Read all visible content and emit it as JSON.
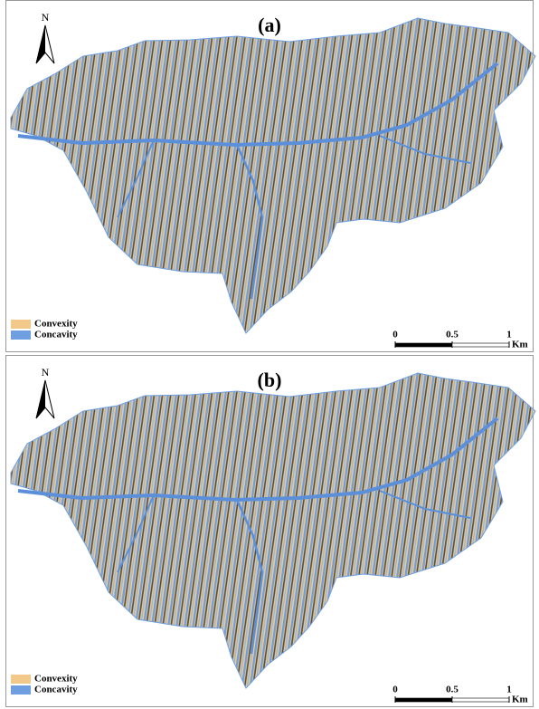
{
  "panels": [
    {
      "label": "(a)",
      "north": "N",
      "legend": [
        {
          "name": "Convexity",
          "color": "#f2c98a"
        },
        {
          "name": "Concavity",
          "color": "#6f9fe0"
        }
      ],
      "scale": {
        "ticks": [
          0,
          0.5,
          1
        ],
        "unit": "Km"
      }
    },
    {
      "label": "(b)",
      "north": "N",
      "legend": [
        {
          "name": "Convexity",
          "color": "#f2c98a"
        },
        {
          "name": "Concavity",
          "color": "#6f9fe0"
        }
      ],
      "scale": {
        "ticks": [
          0,
          0.5,
          1
        ],
        "unit": "Km"
      }
    }
  ]
}
